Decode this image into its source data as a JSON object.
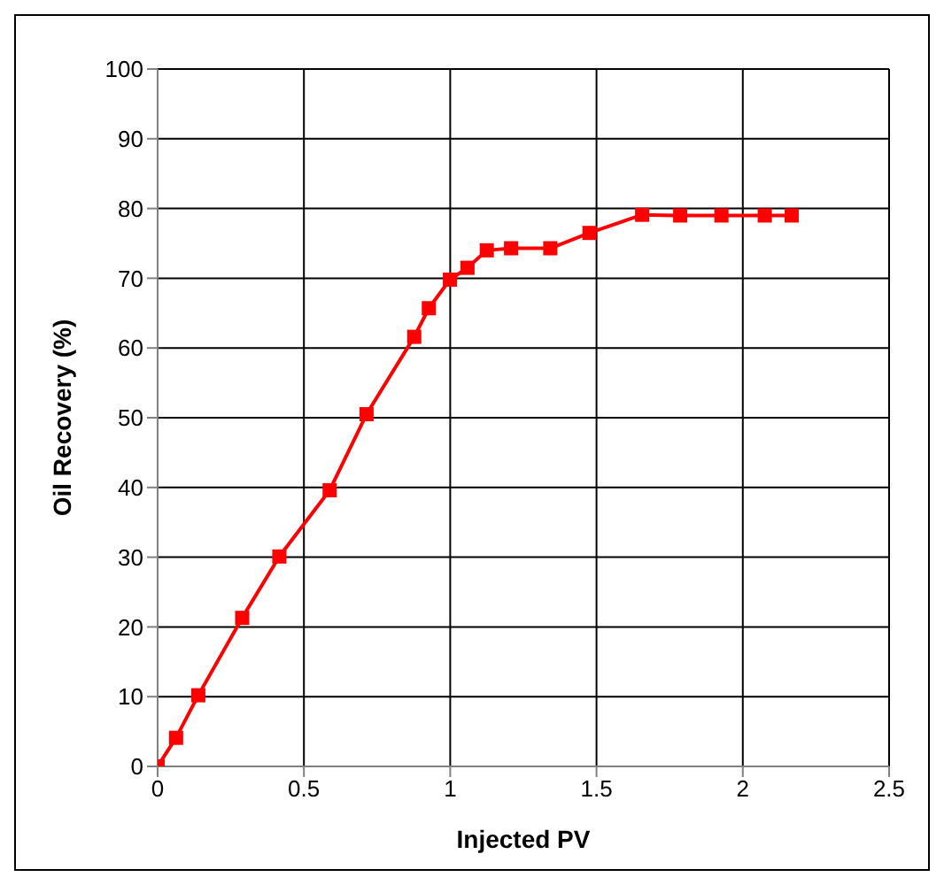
{
  "chart_data": {
    "type": "line",
    "xlabel": "Injected PV",
    "ylabel": "Oil Recovery (%)",
    "x": [
      0,
      0.063,
      0.139,
      0.289,
      0.416,
      0.588,
      0.714,
      0.877,
      0.927,
      0.999,
      1.059,
      1.125,
      1.208,
      1.342,
      1.476,
      1.656,
      1.786,
      1.927,
      2.075,
      2.167
    ],
    "series": [
      {
        "color": "#ff0000",
        "values": [
          0,
          4.1,
          10.2,
          21.3,
          30.1,
          39.6,
          50.5,
          61.6,
          65.7,
          69.8,
          71.5,
          74.0,
          74.3,
          74.3,
          76.5,
          79.1,
          79.0,
          79.0,
          79.0,
          79.0
        ]
      }
    ],
    "xlim": [
      0,
      2.5
    ],
    "xticks": [
      0,
      0.5,
      1,
      1.5,
      2,
      2.5
    ],
    "ylim": [
      0,
      100
    ],
    "yticks": [
      0,
      10,
      20,
      30,
      40,
      50,
      60,
      70,
      80,
      90,
      100
    ],
    "grid": true,
    "marker": "square",
    "line_style": "solid"
  }
}
